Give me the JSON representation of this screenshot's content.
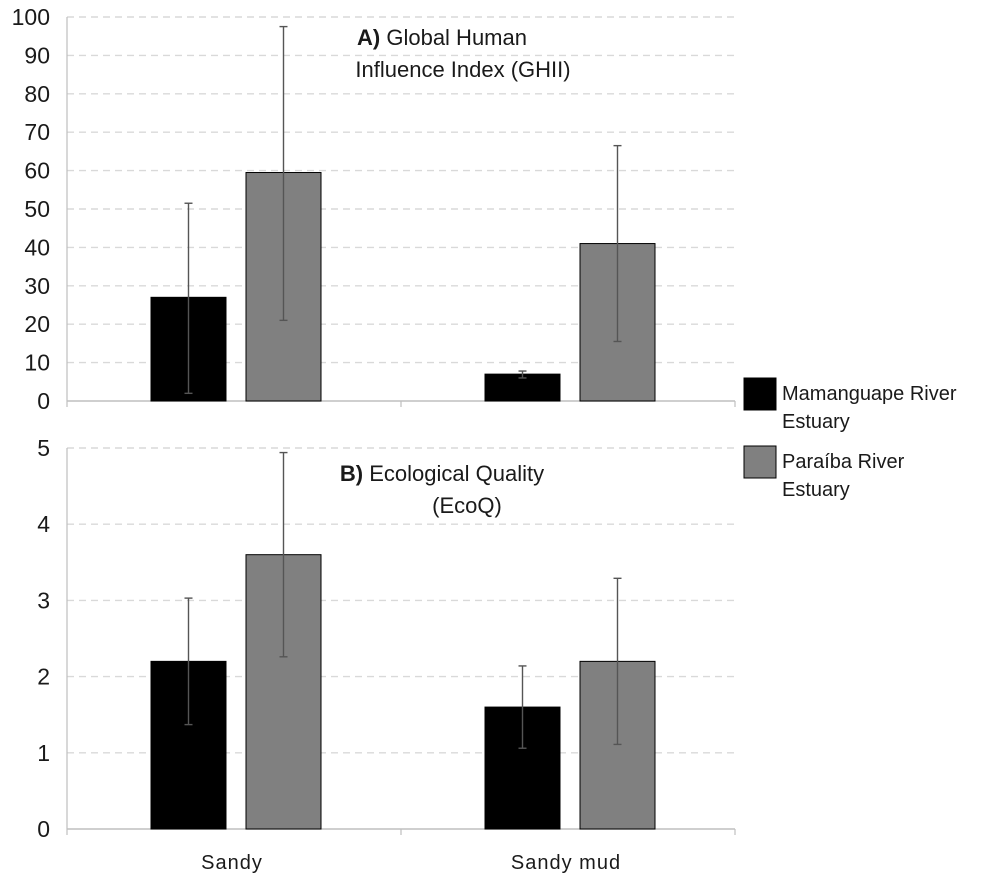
{
  "colors": {
    "mamanguape": "#000000",
    "paraiba": "#808080",
    "grid": "#d9d9d9",
    "axis": "#bfbfbf",
    "text": "#1a1a1a"
  },
  "legend": {
    "items": [
      {
        "lines": [
          "Mamanguape River",
          "Estuary"
        ],
        "color": "#000000"
      },
      {
        "lines": [
          "Paraíba River",
          "Estuary"
        ],
        "color": "#808080"
      }
    ]
  },
  "chart_data": [
    {
      "type": "bar",
      "title_bold": "A)",
      "title_lines": [
        "Global Human",
        "Influence Index  (GHII)"
      ],
      "categories": [
        "Sandy",
        "Sandy mud"
      ],
      "series": [
        {
          "name": "Mamanguape River Estuary",
          "values": [
            27,
            7
          ],
          "error_low": [
            2,
            6
          ],
          "error_high": [
            51.5,
            7.8
          ]
        },
        {
          "name": "Paraíba River Estuary",
          "values": [
            59.5,
            41
          ],
          "error_low": [
            21,
            15.5
          ],
          "error_high": [
            97.5,
            66.5
          ]
        }
      ],
      "ylim": [
        0,
        100
      ],
      "yticks": [
        0,
        10,
        20,
        30,
        40,
        50,
        60,
        70,
        80,
        90,
        100
      ],
      "grid": true,
      "xlabel": "",
      "ylabel": ""
    },
    {
      "type": "bar",
      "title_bold": "B)",
      "title_lines": [
        "Ecological Quality",
        "(EcoQ)"
      ],
      "categories": [
        "Sandy",
        "Sandy mud"
      ],
      "series": [
        {
          "name": "Mamanguape River Estuary",
          "values": [
            2.2,
            1.6
          ],
          "error_low": [
            1.37,
            1.06
          ],
          "error_high": [
            3.03,
            2.14
          ]
        },
        {
          "name": "Paraíba River Estuary",
          "values": [
            3.6,
            2.2
          ],
          "error_low": [
            2.26,
            1.11
          ],
          "error_high": [
            4.94,
            3.29
          ]
        }
      ],
      "ylim": [
        0,
        5
      ],
      "yticks": [
        0,
        1,
        2,
        3,
        4,
        5
      ],
      "grid": true,
      "xlabel": "",
      "ylabel": ""
    }
  ]
}
